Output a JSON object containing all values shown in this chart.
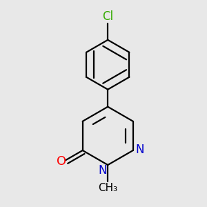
{
  "background_color": "#e8e8e8",
  "bond_color": "#000000",
  "atom_colors": {
    "O": "#ff0000",
    "N": "#0000cc",
    "Cl": "#33aa00",
    "C": "#000000"
  },
  "font_size": 12,
  "lw": 1.6
}
